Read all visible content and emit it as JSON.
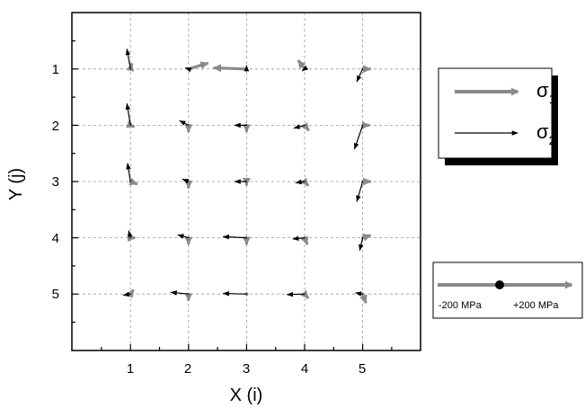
{
  "chart_data": {
    "type": "vector_field",
    "xlabel": "X (i)",
    "ylabel": "Y (j)",
    "x_ticks": [
      "1",
      "2",
      "3",
      "4",
      "5"
    ],
    "y_ticks": [
      "1",
      "2",
      "3",
      "4",
      "5"
    ],
    "xlim": [
      0,
      6
    ],
    "ylim": [
      6,
      0
    ],
    "y_inverted": true,
    "grid": true,
    "legend_position": "right",
    "legend": [
      {
        "symbol": "σ",
        "subscript": "1",
        "color": "#8a8a8a"
      },
      {
        "symbol": "σ",
        "subscript": "2",
        "color": "#000000"
      }
    ],
    "scale_legend": {
      "left_label": "-200 MPa",
      "right_label": "+200 MPa"
    },
    "series": [
      {
        "name": "σ1",
        "color": "#8a8a8a",
        "vectors": [
          {
            "x": 1,
            "y": 1,
            "dx": 0.02,
            "dy": -0.08
          },
          {
            "x": 2,
            "y": 1,
            "dx": 0.32,
            "dy": -0.1
          },
          {
            "x": 3,
            "y": 1,
            "dx": -0.55,
            "dy": -0.02
          },
          {
            "x": 4,
            "y": 1,
            "dx": -0.1,
            "dy": -0.14
          },
          {
            "x": 5,
            "y": 1,
            "dx": 0.12,
            "dy": 0.0
          },
          {
            "x": 1,
            "y": 2,
            "dx": 0.05,
            "dy": 0.02
          },
          {
            "x": 2,
            "y": 2,
            "dx": 0.0,
            "dy": 0.1
          },
          {
            "x": 3,
            "y": 2,
            "dx": 0.0,
            "dy": 0.1
          },
          {
            "x": 4,
            "y": 2,
            "dx": 0.06,
            "dy": 0.08
          },
          {
            "x": 5,
            "y": 2,
            "dx": 0.1,
            "dy": 0.0
          },
          {
            "x": 1,
            "y": 3,
            "dx": 0.1,
            "dy": 0.04
          },
          {
            "x": 2,
            "y": 3,
            "dx": 0.0,
            "dy": 0.1
          },
          {
            "x": 3,
            "y": 3,
            "dx": 0.0,
            "dy": 0.05
          },
          {
            "x": 4,
            "y": 3,
            "dx": 0.05,
            "dy": 0.06
          },
          {
            "x": 5,
            "y": 3,
            "dx": 0.12,
            "dy": 0.0
          },
          {
            "x": 1,
            "y": 4,
            "dx": 0.06,
            "dy": 0.0
          },
          {
            "x": 2,
            "y": 4,
            "dx": 0.0,
            "dy": 0.1
          },
          {
            "x": 3,
            "y": 4,
            "dx": 0.0,
            "dy": 0.1
          },
          {
            "x": 4,
            "y": 4,
            "dx": 0.04,
            "dy": 0.1
          },
          {
            "x": 5,
            "y": 4,
            "dx": 0.12,
            "dy": -0.04
          },
          {
            "x": 1,
            "y": 5,
            "dx": 0.04,
            "dy": -0.06
          },
          {
            "x": 2,
            "y": 5,
            "dx": 0.0,
            "dy": 0.1
          },
          {
            "x": 3,
            "y": 5,
            "dx": 0.0,
            "dy": 0.0
          },
          {
            "x": 4,
            "y": 5,
            "dx": 0.05,
            "dy": 0.06
          },
          {
            "x": 5,
            "y": 5,
            "dx": 0.05,
            "dy": 0.14
          }
        ]
      },
      {
        "name": "σ2",
        "color": "#000000",
        "vectors": [
          {
            "x": 1,
            "y": 1,
            "dx": -0.06,
            "dy": -0.35
          },
          {
            "x": 2,
            "y": 1,
            "dx": -0.05,
            "dy": -0.02
          },
          {
            "x": 3,
            "y": 1,
            "dx": 0.0,
            "dy": -0.06
          },
          {
            "x": 4,
            "y": 1,
            "dx": -0.04,
            "dy": 0.03
          },
          {
            "x": 5,
            "y": 1,
            "dx": -0.1,
            "dy": 0.22
          },
          {
            "x": 1,
            "y": 2,
            "dx": -0.06,
            "dy": -0.38
          },
          {
            "x": 2,
            "y": 2,
            "dx": -0.15,
            "dy": -0.08
          },
          {
            "x": 3,
            "y": 2,
            "dx": -0.2,
            "dy": 0.0
          },
          {
            "x": 4,
            "y": 2,
            "dx": -0.18,
            "dy": 0.05
          },
          {
            "x": 5,
            "y": 2,
            "dx": -0.14,
            "dy": 0.42
          },
          {
            "x": 1,
            "y": 3,
            "dx": -0.05,
            "dy": -0.32
          },
          {
            "x": 2,
            "y": 3,
            "dx": -0.1,
            "dy": -0.04
          },
          {
            "x": 3,
            "y": 3,
            "dx": -0.2,
            "dy": 0.0
          },
          {
            "x": 4,
            "y": 3,
            "dx": -0.15,
            "dy": 0.02
          },
          {
            "x": 5,
            "y": 3,
            "dx": -0.1,
            "dy": 0.35
          },
          {
            "x": 1,
            "y": 4,
            "dx": -0.03,
            "dy": -0.12
          },
          {
            "x": 2,
            "y": 4,
            "dx": -0.18,
            "dy": -0.05
          },
          {
            "x": 3,
            "y": 4,
            "dx": -0.4,
            "dy": -0.02
          },
          {
            "x": 4,
            "y": 4,
            "dx": -0.2,
            "dy": 0.02
          },
          {
            "x": 5,
            "y": 4,
            "dx": -0.05,
            "dy": 0.22
          },
          {
            "x": 1,
            "y": 5,
            "dx": -0.12,
            "dy": 0.02
          },
          {
            "x": 2,
            "y": 5,
            "dx": -0.3,
            "dy": -0.03
          },
          {
            "x": 3,
            "y": 5,
            "dx": -0.4,
            "dy": -0.01
          },
          {
            "x": 4,
            "y": 5,
            "dx": -0.3,
            "dy": 0.01
          },
          {
            "x": 5,
            "y": 5,
            "dx": -0.12,
            "dy": -0.02
          }
        ]
      }
    ]
  }
}
